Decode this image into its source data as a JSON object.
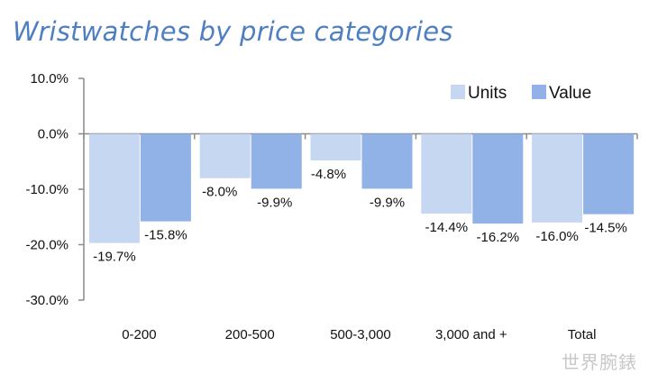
{
  "chart_data": {
    "type": "bar",
    "title": "Wristwatches by price categories",
    "categories": [
      "0-200",
      "200-500",
      "500-3,000",
      "3,000 and +",
      "Total"
    ],
    "series": [
      {
        "name": "Units",
        "color": "#c6d7f1",
        "values": [
          -19.7,
          -8.0,
          -4.8,
          -14.4,
          -16.0
        ],
        "labels": [
          "-19.7%",
          "-8.0%",
          "-4.8%",
          "-14.4%",
          "-16.0%"
        ]
      },
      {
        "name": "Value",
        "color": "#91b2e6",
        "values": [
          -15.8,
          -9.9,
          -9.9,
          -16.2,
          -14.5
        ],
        "labels": [
          "-15.8%",
          "-9.9%",
          "-9.9%",
          "-16.2%",
          "-14.5%"
        ]
      }
    ],
    "y_ticks": [
      10,
      0,
      -10,
      -20,
      -30
    ],
    "y_tick_labels": [
      "10.0%",
      "0.0%",
      "-10.0%",
      "-20.0%",
      "-30.0%"
    ],
    "ylim": [
      -30,
      10
    ],
    "legend_position": "top-right",
    "grid": false
  },
  "watermark": "世界腕錶"
}
